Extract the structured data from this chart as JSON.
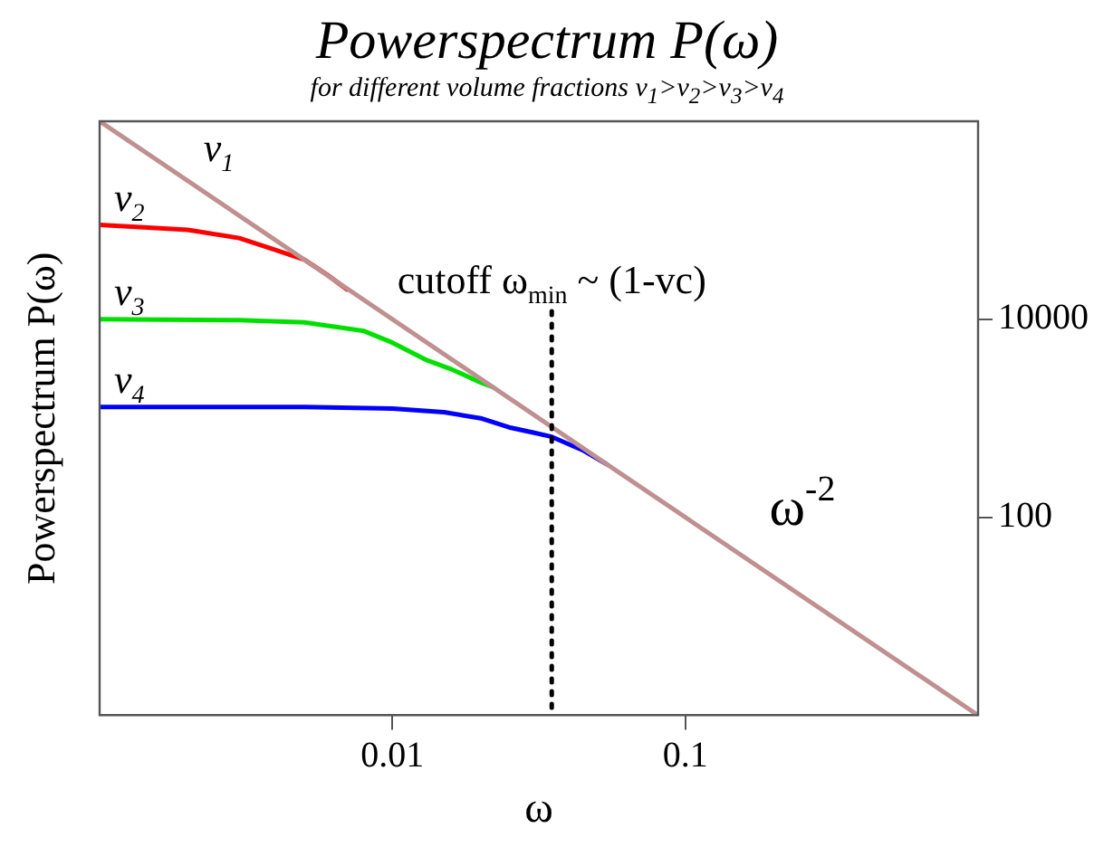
{
  "chart_data": {
    "type": "line",
    "title": "Powerspectrum P(ω)",
    "subtitle": "for different volume fractions v$_{1}$>v$_{2}$>v$_{3}$>v$_{4}$",
    "xlabel": "ω",
    "ylabel": "Powerspectrum P(ω)",
    "log": "xy",
    "xlim": [
      0.001,
      1
    ],
    "ylim": [
      1,
      1000000
    ],
    "xticks": [
      0.01,
      0.1
    ],
    "yticks": [
      100,
      10000
    ],
    "grid": false,
    "legend": false,
    "marker": "none",
    "line_style": "solid",
    "series": [
      {
        "name": "v$_{1}$",
        "color": "#c09090",
        "x": [
          0.001,
          1
        ],
        "values": [
          1000000,
          1
        ]
      },
      {
        "name": "v$_{2}$",
        "color": "#ff0000",
        "x": [
          0.001,
          0.002,
          0.003,
          0.004,
          0.005,
          0.006,
          0.007
        ],
        "values": [
          90000,
          80000,
          66000,
          50000,
          40000,
          28000,
          20000
        ]
      },
      {
        "name": "v$_{3}$",
        "color": "#00e000",
        "x": [
          0.001,
          0.003,
          0.005,
          0.008,
          0.01,
          0.013,
          0.016,
          0.02,
          0.022
        ],
        "values": [
          10000,
          9800,
          9300,
          7600,
          5800,
          3900,
          3100,
          2300,
          2070
        ]
      },
      {
        "name": "v$_{4}$",
        "color": "#0000ff",
        "x": [
          0.001,
          0.005,
          0.01,
          0.015,
          0.02,
          0.025,
          0.03,
          0.035,
          0.045,
          0.054
        ],
        "values": [
          1300,
          1300,
          1250,
          1150,
          1000,
          810,
          720,
          650,
          470,
          343
        ]
      }
    ],
    "ref_lines": [
      {
        "axis": "x",
        "value": 0.035,
        "label": "cutoff ω$_{min}$ ~ (1-vc)",
        "color": "#000000",
        "line_style": "dotted"
      }
    ],
    "annotations": [
      "ω$^{-2}$"
    ]
  }
}
